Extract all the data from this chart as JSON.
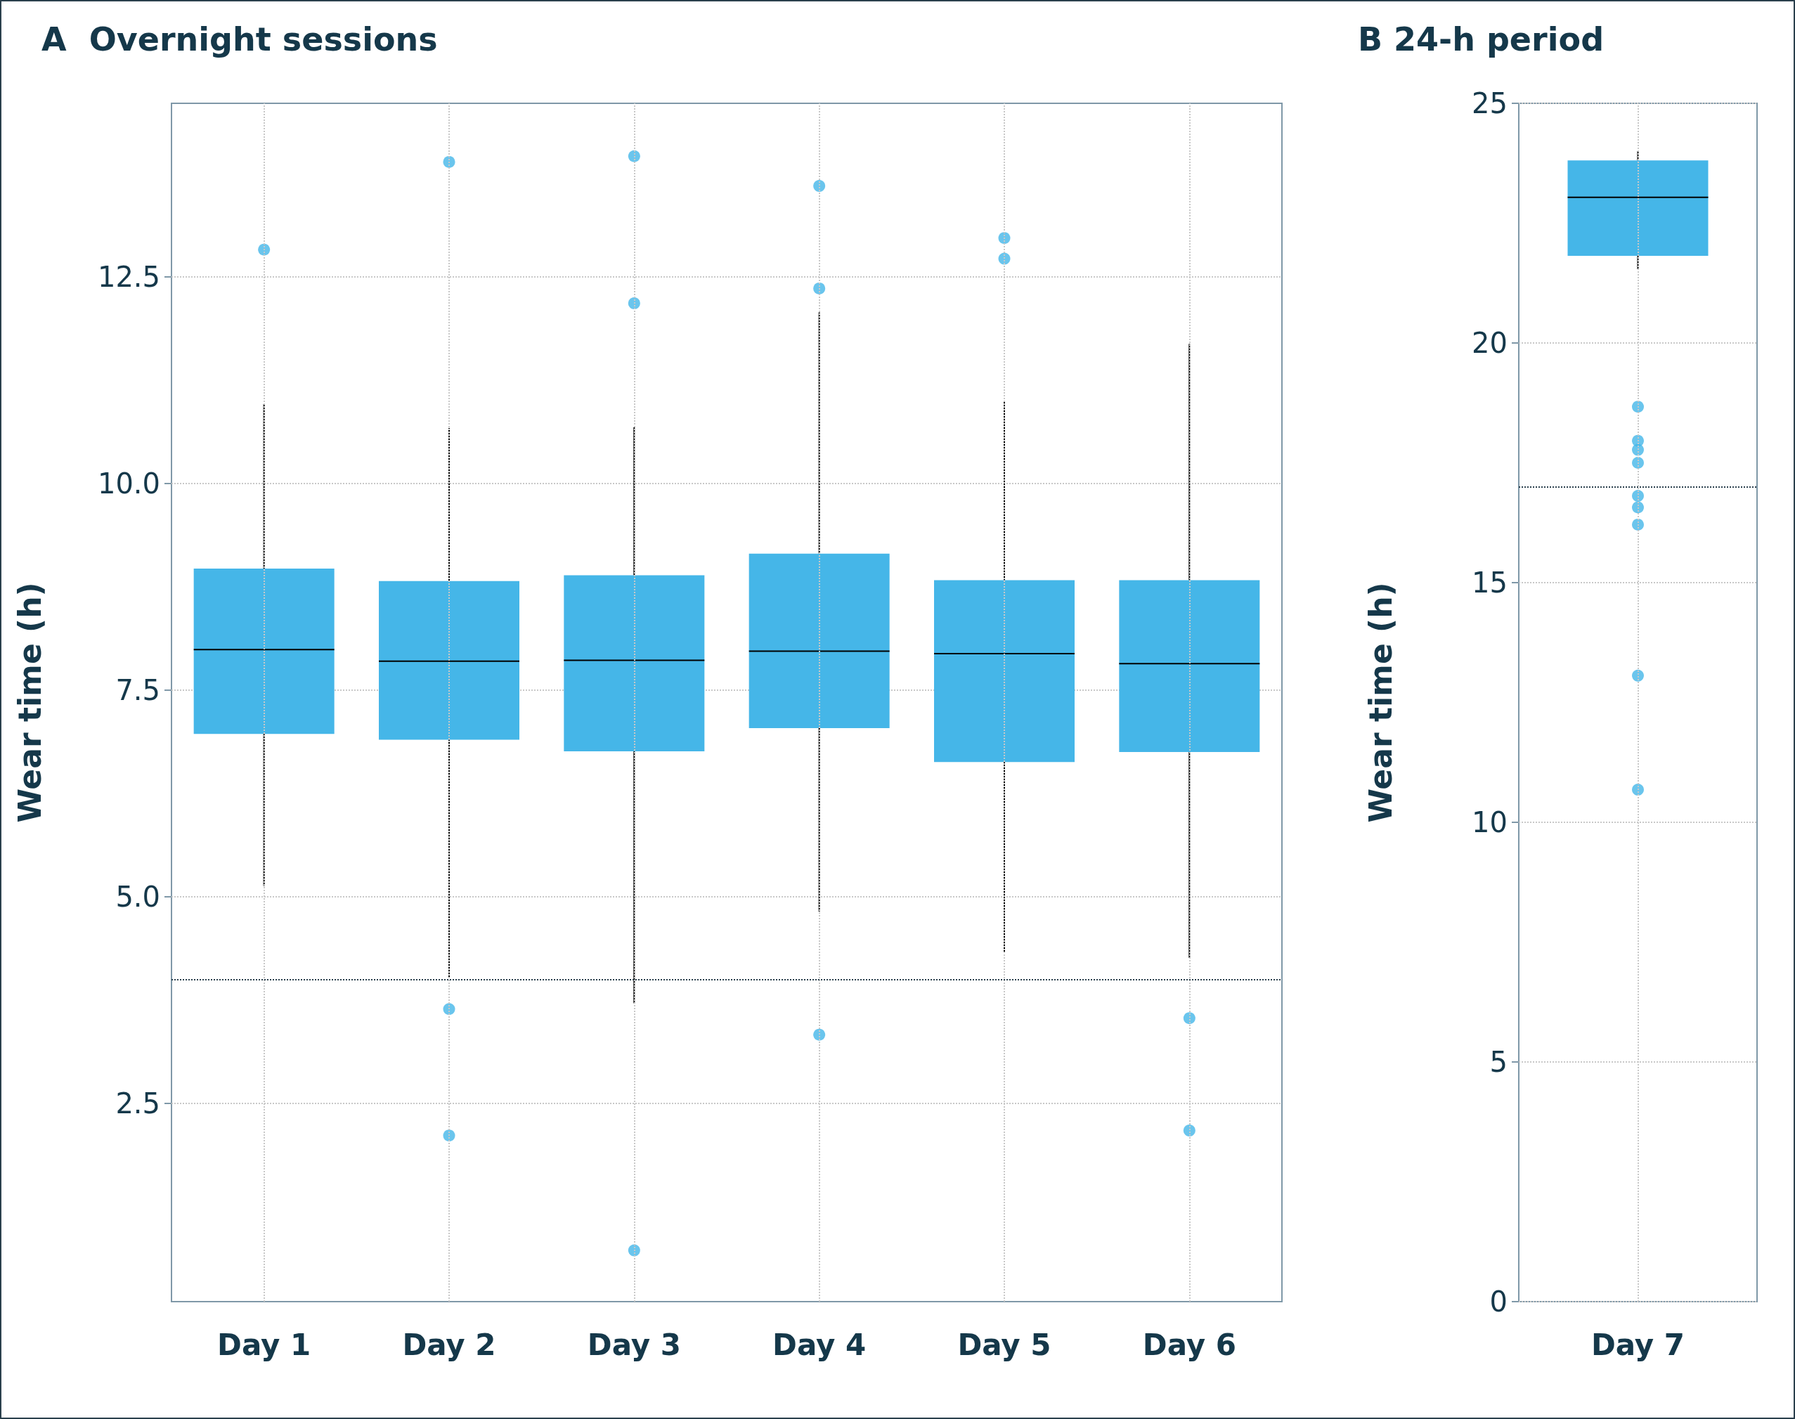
{
  "chart_data": [
    {
      "type": "box",
      "title": "A  Overnight sessions",
      "ylabel": "Wear time (h)",
      "categories": [
        "Day 1",
        "Day 2",
        "Day 3",
        "Day 4",
        "Day 5",
        "Day 6"
      ],
      "color": "#45b6e8",
      "boxes": [
        {
          "low": 5.13,
          "q1": 6.97,
          "median": 7.99,
          "q3": 8.97,
          "high": 10.96,
          "outliers": [
            12.83
          ]
        },
        {
          "low": 4.03,
          "q1": 6.9,
          "median": 7.85,
          "q3": 8.82,
          "high": 10.67,
          "outliers": [
            13.89,
            3.64,
            2.11
          ]
        },
        {
          "low": 3.71,
          "q1": 6.76,
          "median": 7.86,
          "q3": 8.89,
          "high": 10.68,
          "outliers": [
            13.96,
            12.18,
            0.72
          ]
        },
        {
          "low": 4.82,
          "q1": 7.04,
          "median": 7.97,
          "q3": 9.15,
          "high": 12.07,
          "outliers": [
            13.6,
            12.36,
            3.33
          ]
        },
        {
          "low": 4.32,
          "q1": 6.63,
          "median": 7.94,
          "q3": 8.83,
          "high": 10.99,
          "outliers": [
            12.97,
            12.72
          ]
        },
        {
          "low": 4.26,
          "q1": 6.75,
          "median": 7.82,
          "q3": 8.83,
          "high": 11.69,
          "outliers": [
            3.53,
            2.17
          ]
        }
      ],
      "ylim": [
        0.1,
        14.6
      ],
      "yticks": [
        {
          "value": 2.5,
          "label": "2.5"
        },
        {
          "value": 5,
          "label": "5.0"
        },
        {
          "value": 7.5,
          "label": "7.5"
        },
        {
          "value": 10,
          "label": "10.0"
        },
        {
          "value": 12.5,
          "label": "12.5"
        }
      ],
      "ref_lines": [
        {
          "axis": "y",
          "value": 4,
          "label": null,
          "color": "#2a3f4c",
          "line_style": "dotted"
        }
      ],
      "grid": true
    },
    {
      "type": "box",
      "title": "B 24-h period",
      "ylabel": "Wear time (h)",
      "categories": [
        "Day 7"
      ],
      "color": "#45b6e8",
      "boxes": [
        {
          "low": 21.54,
          "q1": 21.82,
          "median": 23.04,
          "q3": 23.81,
          "high": 24.0,
          "outliers": [
            18.67,
            17.96,
            17.77,
            17.5,
            16.81,
            16.57,
            16.21,
            13.06,
            10.68
          ]
        }
      ],
      "ylim": [
        0,
        25
      ],
      "yticks": [
        0,
        5,
        10,
        15,
        20,
        25
      ],
      "ref_lines": [
        {
          "axis": "y",
          "value": 17,
          "label": null,
          "color": "#2a3f4c",
          "line_style": "dotted"
        }
      ],
      "grid": true
    }
  ]
}
